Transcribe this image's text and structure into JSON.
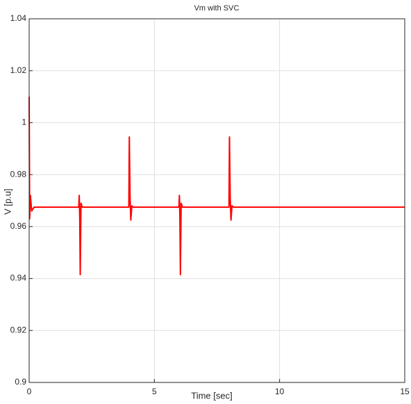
{
  "chart_data": {
    "type": "line",
    "title": "Vm with SVC",
    "x_label": "Time [sec]",
    "y_label": "V [p.u]",
    "x": [
      0,
      0.02,
      0.05,
      0.1,
      0.2,
      1.98,
      2.0,
      2.02,
      2.04,
      2.07,
      2.12,
      3.98,
      4.0,
      4.03,
      4.06,
      4.1,
      4.15,
      5.98,
      6.0,
      6.02,
      6.04,
      6.07,
      6.12,
      7.98,
      8.0,
      8.03,
      8.06,
      8.1,
      8.15,
      15
    ],
    "series": [
      {
        "name": "Vm",
        "color": "#ff0000",
        "values": [
          1.01,
          0.963,
          0.972,
          0.966,
          0.9675,
          0.9675,
          0.972,
          0.963,
          0.9415,
          0.969,
          0.9675,
          0.9675,
          0.9945,
          0.971,
          0.9625,
          0.968,
          0.9675,
          0.9675,
          0.972,
          0.963,
          0.9415,
          0.969,
          0.9675,
          0.9675,
          0.9945,
          0.971,
          0.9625,
          0.968,
          0.9675,
          0.9675
        ]
      }
    ],
    "xlim": [
      0,
      15
    ],
    "xticks": [
      0,
      5,
      10,
      15
    ],
    "ylim": [
      0.9,
      1.04
    ],
    "yticks": [
      0.9,
      0.92,
      0.94,
      0.96,
      0.98,
      1,
      1.02,
      1.04
    ],
    "grid": true
  }
}
